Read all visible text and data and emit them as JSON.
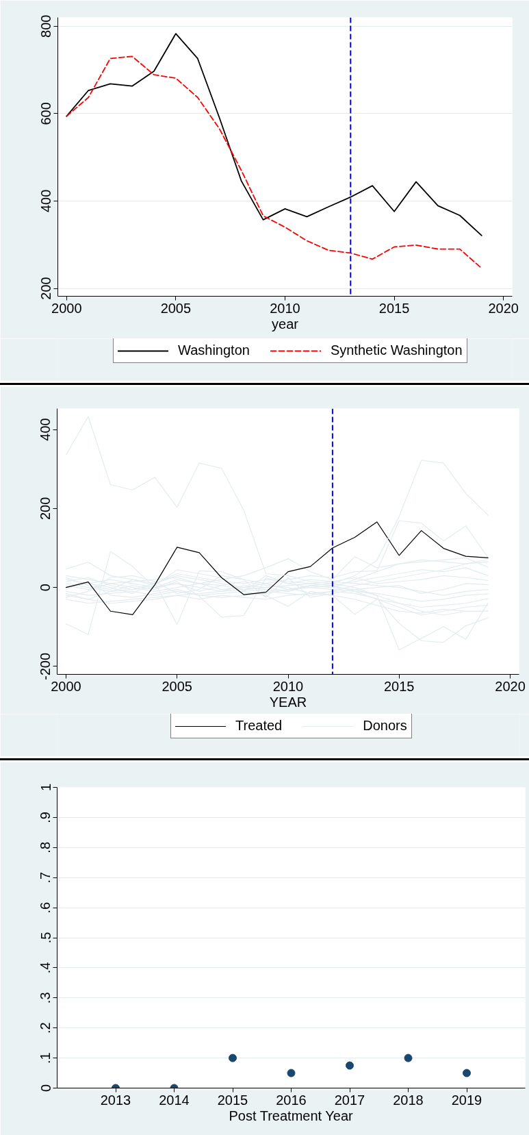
{
  "chart_data": [
    {
      "type": "line",
      "xlabel": "year",
      "x": [
        2000,
        2001,
        2002,
        2003,
        2004,
        2005,
        2006,
        2007,
        2008,
        2009,
        2010,
        2011,
        2012,
        2013,
        2014,
        2015,
        2016,
        2017,
        2018,
        2019
      ],
      "series": [
        {
          "name": "Washington",
          "color": "#000000",
          "line_style": "solid",
          "values": [
            594,
            653,
            668,
            663,
            697,
            783,
            726,
            590,
            446,
            357,
            382,
            364,
            387,
            409,
            435,
            376,
            444,
            389,
            367,
            321
          ]
        },
        {
          "name": "Synthetic Washington",
          "color": "#ff0000",
          "line_style": "dashed",
          "values": [
            594,
            637,
            726,
            731,
            689,
            681,
            637,
            565,
            470,
            366,
            340,
            309,
            287,
            281,
            267,
            295,
            299,
            290,
            290,
            246
          ]
        }
      ],
      "xlim": [
        1999.6,
        2020.4
      ],
      "ylim": [
        182,
        820
      ],
      "xticks": [
        2000,
        2005,
        2010,
        2015,
        2020
      ],
      "yticks": [
        200,
        400,
        600,
        800
      ],
      "grid": "y",
      "legend": "bottom",
      "ref_lines": [
        {
          "axis": "x",
          "value": 2013,
          "color": "#0000ff",
          "line_style": "dashed"
        }
      ]
    },
    {
      "type": "line",
      "xlabel": "YEAR",
      "x": [
        2000,
        2001,
        2002,
        2003,
        2004,
        2005,
        2006,
        2007,
        2008,
        2009,
        2010,
        2011,
        2012,
        2013,
        2014,
        2015,
        2016,
        2017,
        2018,
        2019
      ],
      "series": [
        {
          "name": "Treated",
          "color": "#000000",
          "values": [
            0,
            14,
            -60,
            -69,
            7,
            102,
            88,
            25,
            -18,
            -12,
            40,
            53,
            100,
            127,
            166,
            81,
            144,
            99,
            79,
            75
          ]
        },
        {
          "name": "Donors",
          "color": "#e3ecee",
          "values": [
            336,
            433,
            260,
            247,
            279,
            203,
            315,
            302,
            196,
            35,
            30,
            15,
            10,
            30,
            69,
            180,
            322,
            315,
            238,
            183
          ]
        },
        {
          "color": "#e3ecee",
          "values": [
            -92,
            -119,
            91,
            53,
            0,
            10,
            -10,
            5,
            15,
            5,
            0,
            -15,
            -10,
            5,
            15,
            25,
            35,
            45,
            60,
            65
          ]
        },
        {
          "color": "#e3ecee",
          "values": [
            20,
            10,
            0,
            -15,
            13,
            -94,
            42,
            40,
            20,
            10,
            -5,
            5,
            10,
            0,
            -20,
            -40,
            -60,
            -70,
            -60,
            -60
          ]
        },
        {
          "color": "#e3ecee",
          "values": [
            -20,
            -30,
            -10,
            5,
            -5,
            15,
            -22,
            -75,
            -71,
            24,
            10,
            0,
            5,
            -10,
            -30,
            -50,
            -70,
            -60,
            -50,
            -45
          ]
        },
        {
          "color": "#e3ecee",
          "values": [
            47,
            64,
            30,
            20,
            10,
            30,
            20,
            10,
            0,
            -5,
            -10,
            5,
            0,
            20,
            40,
            60,
            70,
            65,
            60,
            71
          ]
        },
        {
          "color": "#e3ecee",
          "values": [
            10,
            0,
            -10,
            -5,
            0,
            10,
            0,
            -10,
            5,
            0,
            -10,
            5,
            0,
            -5,
            -20,
            -158,
            -129,
            -99,
            -131,
            -39
          ]
        },
        {
          "color": "#e3ecee",
          "values": [
            -30,
            -40,
            -35,
            -30,
            -25,
            -20,
            -15,
            -10,
            -5,
            -10,
            -15,
            -20,
            -10,
            -15,
            -28,
            -91,
            -135,
            -139,
            -97,
            -77
          ]
        },
        {
          "color": "#e3ecee",
          "values": [
            0,
            10,
            20,
            10,
            0,
            20,
            10,
            -5,
            0,
            10,
            20,
            30,
            25,
            40,
            42,
            169,
            163,
            118,
            156,
            76
          ]
        },
        {
          "color": "#e3ecee",
          "values": [
            30,
            20,
            10,
            0,
            -10,
            0,
            10,
            20,
            30,
            50,
            73,
            40,
            20,
            78,
            50,
            60,
            65,
            70,
            75,
            51
          ]
        },
        {
          "color": "#e3ecee",
          "values": [
            -10,
            -20,
            -15,
            -10,
            -20,
            -10,
            -20,
            -15,
            -10,
            -20,
            -48,
            -10,
            -20,
            -68,
            -30,
            -40,
            -50,
            -45,
            -40,
            -28
          ]
        },
        {
          "color": "#e3ecee",
          "values": [
            5,
            -5,
            10,
            15,
            20,
            25,
            10,
            5,
            -5,
            0,
            5,
            10,
            15,
            10,
            5,
            0,
            -10,
            -20,
            -10,
            -5
          ]
        },
        {
          "color": "#e3ecee",
          "values": [
            -5,
            15,
            -20,
            -25,
            -15,
            -5,
            -20,
            -25,
            -20,
            -15,
            -5,
            0,
            -5,
            -10,
            -15,
            -25,
            -35,
            -30,
            -20,
            -16
          ]
        },
        {
          "color": "#e3ecee",
          "values": [
            15,
            25,
            5,
            -5,
            10,
            35,
            25,
            15,
            10,
            20,
            15,
            10,
            5,
            15,
            25,
            35,
            45,
            40,
            50,
            30
          ]
        },
        {
          "color": "#e3ecee",
          "values": [
            -15,
            -30,
            -40,
            -35,
            -30,
            -20,
            -30,
            -20,
            -25,
            -30,
            -20,
            -15,
            -20,
            -30,
            -45,
            -60,
            -65,
            -55,
            -60,
            -60
          ]
        },
        {
          "color": "#e3ecee",
          "values": [
            25,
            5,
            -5,
            20,
            5,
            45,
            35,
            25,
            -10,
            30,
            10,
            20,
            15,
            25,
            10,
            15,
            20,
            30,
            25,
            18
          ]
        },
        {
          "color": "#e3ecee",
          "values": [
            -25,
            -10,
            25,
            30,
            15,
            -15,
            -5,
            30,
            20,
            -25,
            25,
            -25,
            -15,
            -5,
            0,
            5,
            -15,
            -5,
            10,
            7
          ]
        }
      ],
      "xlim": [
        1999.6,
        2020.4
      ],
      "ylim": [
        -220,
        453
      ],
      "xticks": [
        2000,
        2005,
        2010,
        2015,
        2020
      ],
      "yticks": [
        -200,
        0,
        200,
        400
      ],
      "legend": "bottom",
      "ref_lines": [
        {
          "axis": "x",
          "value": 2012,
          "color": "#0000ff",
          "line_style": "dashed"
        }
      ]
    },
    {
      "type": "scatter",
      "xlabel": "Post Treatment Year",
      "x": [
        2013,
        2014,
        2015,
        2016,
        2017,
        2018,
        2019
      ],
      "values": [
        0,
        0,
        0.1,
        0.05,
        0.075,
        0.1,
        0.05
      ],
      "color": "#1a476f",
      "marker": "circle",
      "xlim": [
        2012,
        2020
      ],
      "ylim": [
        0,
        1
      ],
      "xticks": [
        2013,
        2014,
        2015,
        2016,
        2017,
        2018,
        2019
      ],
      "yticks": [
        0,
        {
          "value": 0.1,
          "label": ".1"
        },
        {
          "value": 0.2,
          "label": ".2"
        },
        {
          "value": 0.3,
          "label": ".3"
        },
        {
          "value": 0.4,
          "label": ".4"
        },
        {
          "value": 0.5,
          "label": ".5"
        },
        {
          "value": 0.6,
          "label": ".6"
        },
        {
          "value": 0.7,
          "label": ".7"
        },
        {
          "value": 0.8,
          "label": ".8"
        },
        {
          "value": 0.9,
          "label": ".9"
        },
        1
      ],
      "grid": "y"
    }
  ]
}
